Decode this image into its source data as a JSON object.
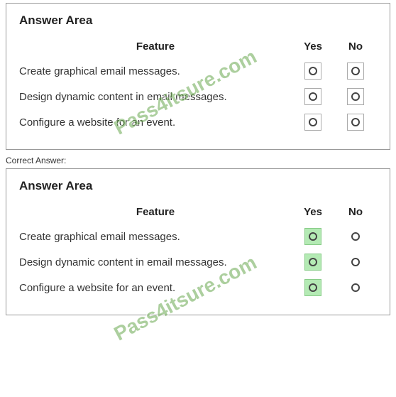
{
  "panel_title": "Answer Area",
  "headers": {
    "feature": "Feature",
    "yes": "Yes",
    "no": "No"
  },
  "rows": [
    {
      "label": "Create graphical email messages."
    },
    {
      "label": "Design dynamic content in email messages."
    },
    {
      "label": "Configure a website for an event."
    }
  ],
  "correct_label": "Correct Answer:",
  "answers_top": {
    "yes": [
      false,
      false,
      false
    ],
    "no": [
      false,
      false,
      false
    ]
  },
  "answers_bottom": {
    "yes": [
      true,
      true,
      true
    ],
    "no": [
      false,
      false,
      false
    ]
  },
  "watermark": "Pass4itsure.com",
  "colors": {
    "selected_bg": "#b4eab4",
    "watermark": "#6aa84f"
  }
}
